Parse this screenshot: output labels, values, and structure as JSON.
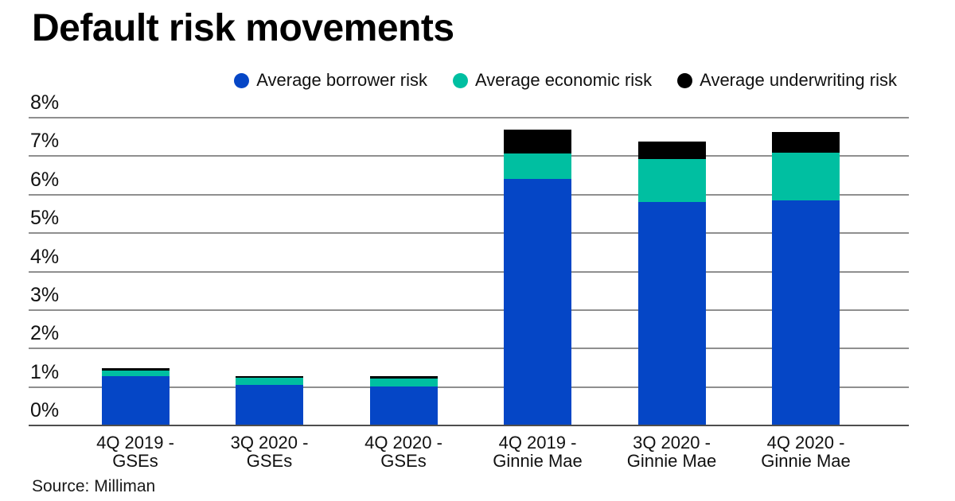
{
  "header": {
    "title": "Default risk movements"
  },
  "legend": [
    {
      "label": "Average borrower risk",
      "color": "#0546C6"
    },
    {
      "label": "Average economic risk",
      "color": "#00BFA1"
    },
    {
      "label": "Average underwriting risk",
      "color": "#000000"
    }
  ],
  "chart_data": {
    "type": "bar",
    "stacked": true,
    "title": "Default risk movements",
    "categories": [
      "4Q 2019 -\nGSEs",
      "3Q 2020 -\nGSEs",
      "4Q 2020 -\nGSEs",
      "4Q 2019 -\nGinnie Mae",
      "3Q 2020 -\nGinnie Mae",
      "4Q 2020 -\nGinnie Mae"
    ],
    "series": [
      {
        "name": "Average borrower risk",
        "color": "#0546C6",
        "values": [
          1.28,
          1.06,
          1.01,
          6.41,
          5.81,
          5.85
        ]
      },
      {
        "name": "Average economic risk",
        "color": "#00BFA1",
        "values": [
          0.15,
          0.18,
          0.2,
          0.67,
          1.12,
          1.25
        ]
      },
      {
        "name": "Average underwriting risk",
        "color": "#000000",
        "values": [
          0.07,
          0.05,
          0.06,
          0.62,
          0.45,
          0.54
        ]
      }
    ],
    "xlabel": "",
    "ylabel": "",
    "ylim": [
      0,
      8
    ],
    "y_tick_step": 1,
    "y_ticks": [
      "0%",
      "1%",
      "2%",
      "3%",
      "4%",
      "5%",
      "6%",
      "7%",
      "8%"
    ],
    "grid": "horizontal",
    "legend_position": "top",
    "gridline_color": "#8f8f8f",
    "baseline_color": "#4d4d4d"
  },
  "footer": {
    "source": "Source: Milliman"
  }
}
